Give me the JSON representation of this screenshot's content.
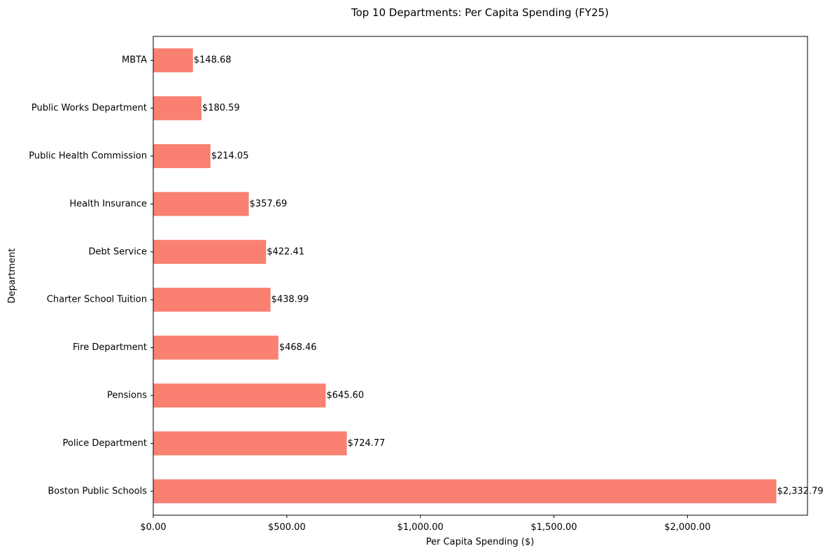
{
  "chart_data": {
    "type": "bar",
    "orientation": "horizontal",
    "title": "Top 10 Departments: Per Capita Spending (FY25)",
    "xlabel": "Per Capita Spending ($)",
    "ylabel": "Department",
    "categories": [
      "Boston Public Schools",
      "Police Department",
      "Pensions",
      "Fire Department",
      "Charter School Tuition",
      "Debt Service",
      "Health Insurance",
      "Public Health Commission",
      "Public Works Department",
      "MBTA"
    ],
    "values": [
      2332.79,
      724.77,
      645.6,
      468.46,
      438.99,
      422.41,
      357.69,
      214.05,
      180.59,
      148.68
    ],
    "data_labels": [
      "$2,332.79",
      "$724.77",
      "$645.60",
      "$468.46",
      "$438.99",
      "$422.41",
      "$357.69",
      "$214.05",
      "$180.59",
      "$148.68"
    ],
    "xlim": [
      0,
      2449.43
    ],
    "xticks": [
      0,
      500,
      1000,
      1500,
      2000
    ],
    "xtick_labels": [
      "$0.00",
      "$500.00",
      "$1,000.00",
      "$1,500.00",
      "$2,000.00"
    ],
    "grid": false,
    "legend": "none",
    "bar_color": "#fa8072"
  }
}
